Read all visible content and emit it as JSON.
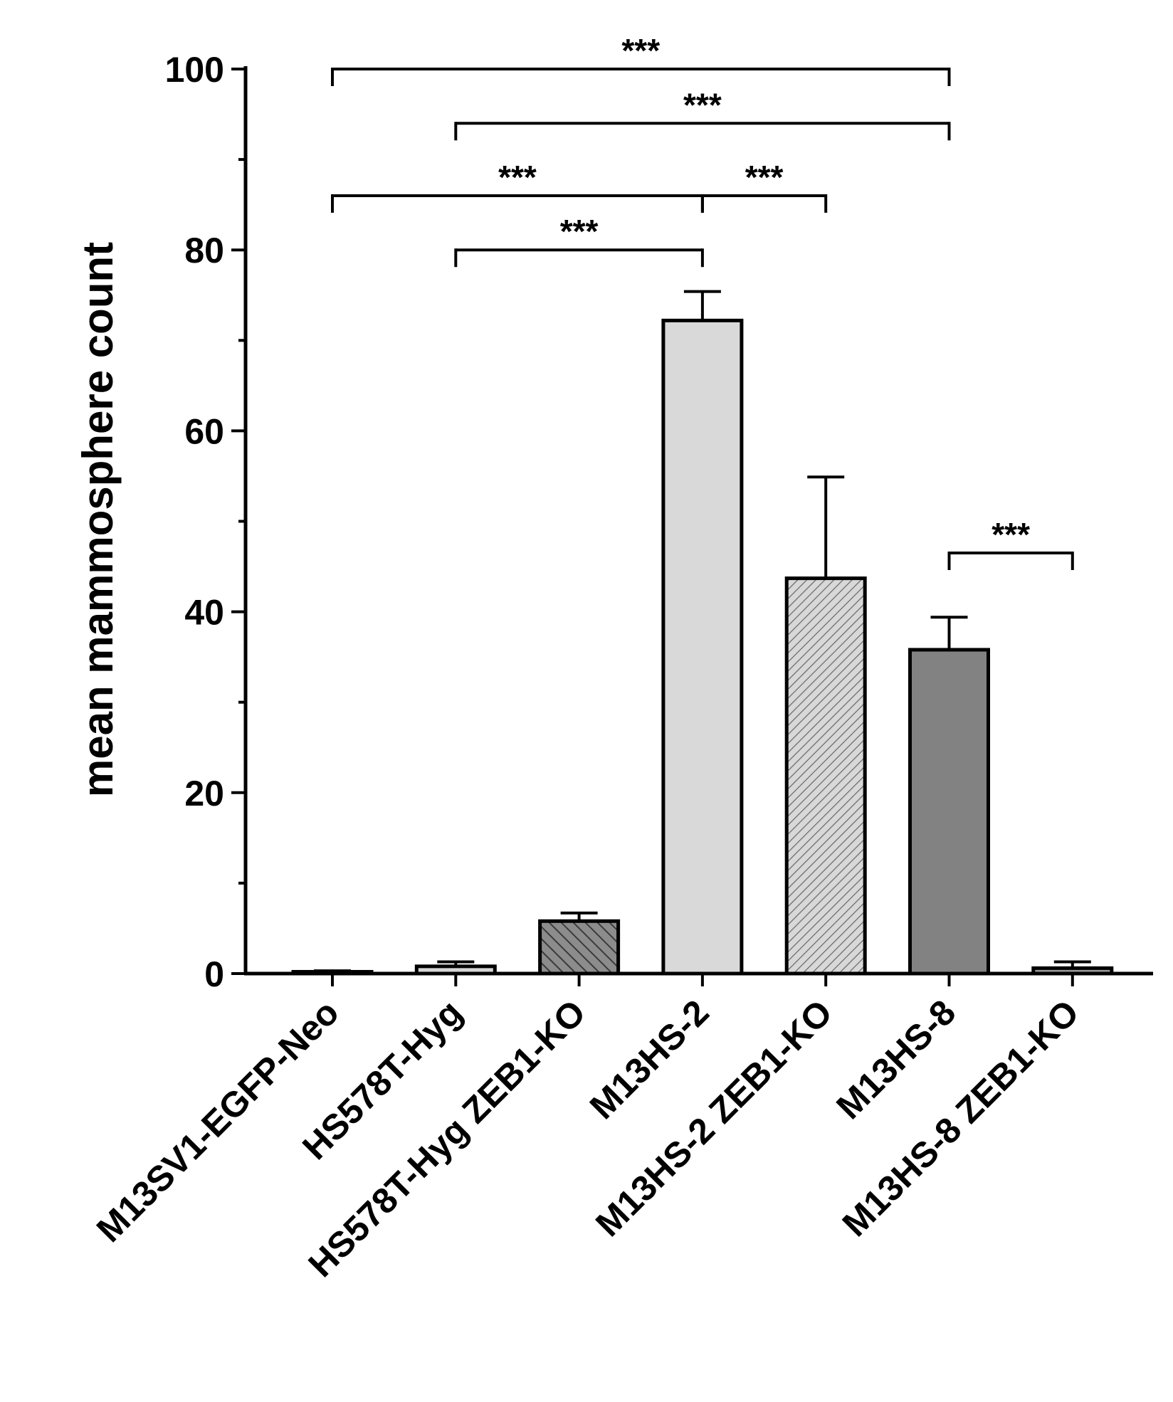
{
  "chart_data": {
    "type": "bar",
    "title": "",
    "xlabel": "",
    "ylabel": "mean mammosphere count",
    "ylim": [
      0,
      100
    ],
    "yticks": [
      0,
      20,
      40,
      60,
      80,
      100
    ],
    "categories": [
      "M13SV1-EGFP-Neo",
      "HS578T-Hyg",
      "HS578T-Hyg ZEB1-KO",
      "M13HS-2",
      "M13HS-2 ZEB1-KO",
      "M13HS-8",
      "M13HS-8 ZEB1-KO"
    ],
    "values": [
      0.2,
      0.8,
      5.8,
      72.2,
      43.7,
      35.8,
      0.6
    ],
    "errors": [
      0.1,
      0.5,
      0.9,
      3.2,
      11.2,
      3.6,
      0.7
    ],
    "fills": [
      "#ffffff",
      "#d6d6d6",
      "#8c8c8c",
      "#d9d9d9",
      "#d0d0d0",
      "#828282",
      "#9a9a9a"
    ],
    "patterns": [
      "none",
      "none",
      "hatch-dense",
      "none",
      "hatch-fine",
      "none",
      "none"
    ],
    "significance": [
      {
        "from": 0,
        "to": 5,
        "level": 100,
        "label": "***"
      },
      {
        "from": 1,
        "to": 5,
        "level": 94,
        "label": "***"
      },
      {
        "from": 0,
        "to": 3,
        "level": 86,
        "label": "***"
      },
      {
        "from": 3,
        "to": 4,
        "level": 86,
        "label": "***"
      },
      {
        "from": 1,
        "to": 3,
        "level": 80,
        "label": "***"
      },
      {
        "from": 5,
        "to": 6,
        "level": 46.5,
        "label": "***"
      }
    ]
  }
}
